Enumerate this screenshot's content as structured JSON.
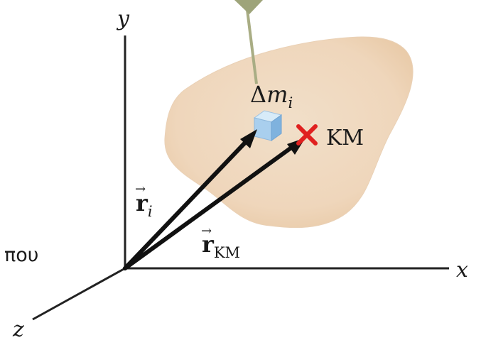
{
  "side_text": "που",
  "axes": {
    "x": "x",
    "y": "y",
    "z": "z"
  },
  "element": {
    "delta": "Δ",
    "symbol": "m",
    "subscript": "i"
  },
  "center_of_mass": {
    "label": "KM"
  },
  "vectors": {
    "r_i": {
      "symbol": "r",
      "subscript": "i",
      "arrow": "→"
    },
    "r_cm": {
      "symbol": "r",
      "subscript": "KM",
      "arrow": "→"
    }
  },
  "colors": {
    "body_fill": "#f2dcc4",
    "axis": "#222222",
    "vector": "#111111",
    "cm_marker": "#e0201f",
    "cube_top": "#d7ebf8",
    "cube_front": "#a9cfee",
    "cube_side": "#7fb2de",
    "string": "#a9ad84"
  }
}
